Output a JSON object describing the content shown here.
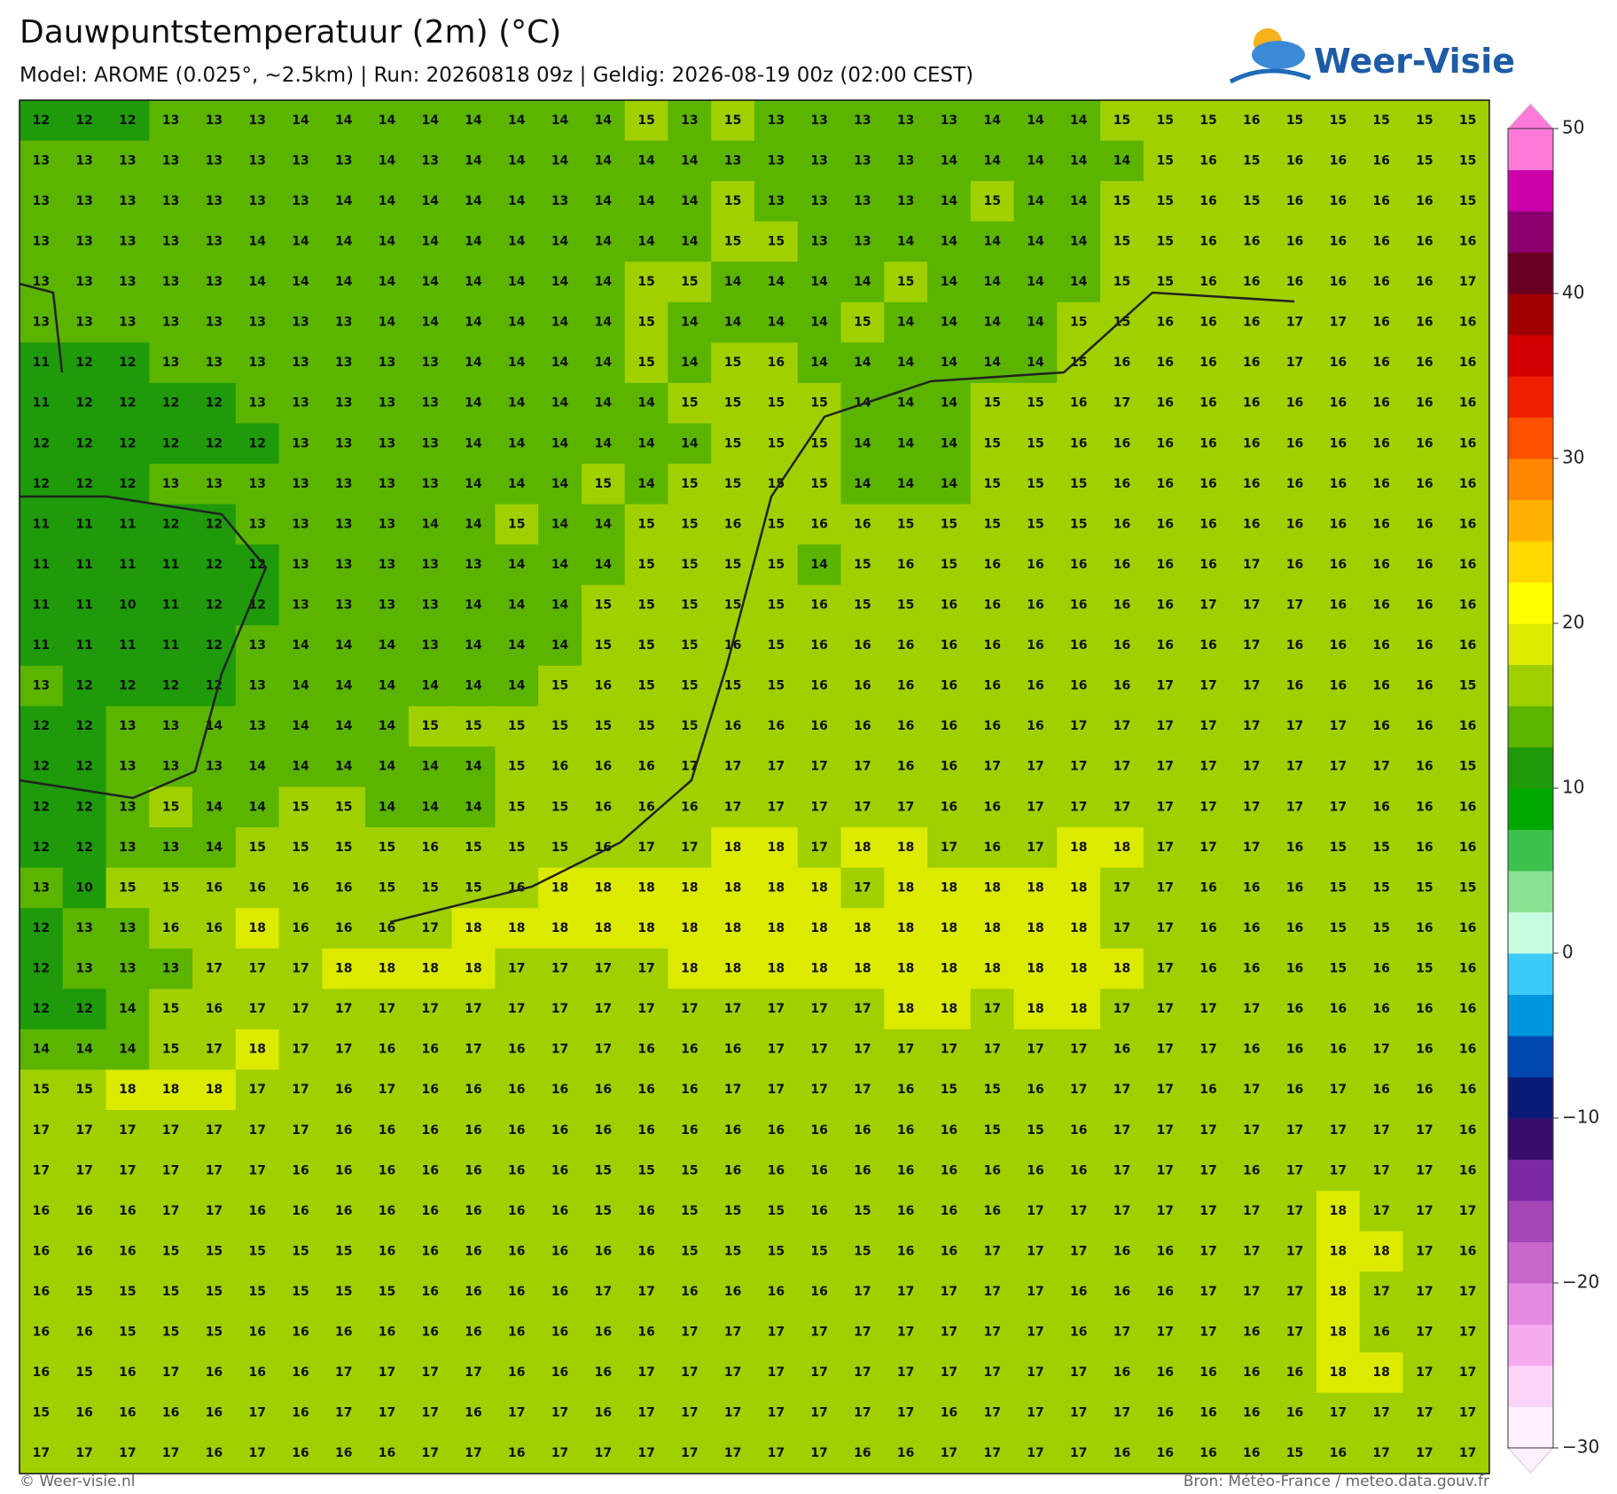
{
  "header": {
    "title": "Dauwpuntstemperatuur (2m) (°C)",
    "subtitle": "Model: AROME (0.025°, ~2.5km)  |  Run: 20260818 09z  |  Geldig: 2026-08-19 00z (02:00 CEST)",
    "logo": "Weer-Visie"
  },
  "footer": {
    "left": "© Weer-visie.nl",
    "right": "Bron: Météo-France / meteo.data.gouv.fr"
  },
  "colorbar": {
    "range": [
      -30,
      50
    ],
    "ticks": [
      {
        "value": -30,
        "label": "−30"
      },
      {
        "value": -20,
        "label": "−20"
      },
      {
        "value": -10,
        "label": "−10"
      },
      0,
      10,
      20,
      30,
      40,
      50
    ],
    "colors": [
      "#fef0fe",
      "#fcd4f8",
      "#f4aaee",
      "#e48ae2",
      "#c866cc",
      "#a446b8",
      "#7a28a4",
      "#3a0c6c",
      "#0a1a78",
      "#0048b0",
      "#0096de",
      "#3ccaf8",
      "#c8fce0",
      "#88e294",
      "#3cc24c",
      "#00a800",
      "#1e9a0a",
      "#5ab400",
      "#a0d000",
      "#dcea00",
      "#ffff00",
      "#ffd800",
      "#ffb000",
      "#ff8400",
      "#ff5000",
      "#f01e00",
      "#d20000",
      "#a00000",
      "#6a0022",
      "#8c006e",
      "#cc00a8",
      "#ff7ad8"
    ]
  },
  "grid": {
    "rows": [
      [
        12,
        12,
        12,
        13,
        13,
        13,
        14,
        14,
        14,
        14,
        14,
        14,
        14,
        14,
        15,
        13,
        15,
        13,
        13,
        13,
        13,
        13,
        14,
        14,
        14,
        15,
        15,
        15,
        16,
        15,
        15,
        15,
        15,
        15
      ],
      [
        13,
        13,
        13,
        13,
        13,
        13,
        13,
        13,
        14,
        13,
        14,
        14,
        14,
        14,
        14,
        14,
        13,
        13,
        13,
        13,
        13,
        14,
        14,
        14,
        14,
        14,
        15,
        16,
        15,
        16,
        16,
        16,
        15,
        15
      ],
      [
        13,
        13,
        13,
        13,
        13,
        13,
        13,
        14,
        14,
        14,
        14,
        14,
        13,
        14,
        14,
        14,
        15,
        13,
        13,
        13,
        13,
        14,
        15,
        14,
        14,
        15,
        15,
        16,
        15,
        16,
        16,
        16,
        16,
        15
      ],
      [
        13,
        13,
        13,
        13,
        13,
        14,
        14,
        14,
        14,
        14,
        14,
        14,
        14,
        14,
        14,
        14,
        15,
        15,
        13,
        13,
        14,
        14,
        14,
        14,
        14,
        15,
        15,
        16,
        16,
        16,
        16,
        16,
        16,
        16
      ],
      [
        13,
        13,
        13,
        13,
        13,
        14,
        14,
        14,
        14,
        14,
        14,
        14,
        14,
        14,
        15,
        15,
        14,
        14,
        14,
        14,
        15,
        14,
        14,
        14,
        14,
        15,
        15,
        16,
        16,
        16,
        16,
        16,
        16,
        17
      ],
      [
        13,
        13,
        13,
        13,
        13,
        13,
        13,
        13,
        14,
        14,
        14,
        14,
        14,
        14,
        15,
        14,
        14,
        14,
        14,
        15,
        14,
        14,
        14,
        14,
        15,
        15,
        16,
        16,
        16,
        17,
        17,
        16,
        16,
        16
      ],
      [
        11,
        12,
        12,
        13,
        13,
        13,
        13,
        13,
        13,
        13,
        14,
        14,
        14,
        14,
        15,
        14,
        15,
        16,
        14,
        14,
        14,
        14,
        14,
        14,
        15,
        16,
        16,
        16,
        16,
        17,
        16,
        16,
        16,
        16
      ],
      [
        11,
        12,
        12,
        12,
        12,
        13,
        13,
        13,
        13,
        13,
        14,
        14,
        14,
        14,
        14,
        15,
        15,
        15,
        15,
        14,
        14,
        14,
        15,
        15,
        16,
        17,
        16,
        16,
        16,
        16,
        16,
        16,
        16,
        16
      ],
      [
        12,
        12,
        12,
        12,
        12,
        12,
        13,
        13,
        13,
        13,
        14,
        14,
        14,
        14,
        14,
        14,
        15,
        15,
        15,
        14,
        14,
        14,
        15,
        15,
        16,
        16,
        16,
        16,
        16,
        16,
        16,
        16,
        16,
        16
      ],
      [
        12,
        12,
        12,
        13,
        13,
        13,
        13,
        13,
        13,
        13,
        14,
        14,
        14,
        15,
        14,
        15,
        15,
        15,
        15,
        14,
        14,
        14,
        15,
        15,
        15,
        16,
        16,
        16,
        16,
        16,
        16,
        16,
        16,
        16
      ],
      [
        11,
        11,
        11,
        12,
        12,
        13,
        13,
        13,
        13,
        14,
        14,
        15,
        14,
        14,
        15,
        15,
        16,
        15,
        16,
        16,
        15,
        15,
        15,
        15,
        15,
        16,
        16,
        16,
        16,
        16,
        16,
        16,
        16,
        16
      ],
      [
        11,
        11,
        11,
        11,
        12,
        12,
        13,
        13,
        13,
        13,
        13,
        14,
        14,
        14,
        15,
        15,
        15,
        15,
        14,
        15,
        16,
        15,
        16,
        16,
        16,
        16,
        16,
        16,
        17,
        16,
        16,
        16,
        16,
        16
      ],
      [
        11,
        11,
        10,
        11,
        12,
        12,
        13,
        13,
        13,
        13,
        14,
        14,
        14,
        15,
        15,
        15,
        15,
        15,
        16,
        15,
        15,
        16,
        16,
        16,
        16,
        16,
        16,
        17,
        17,
        17,
        16,
        16,
        16,
        16
      ],
      [
        11,
        11,
        11,
        11,
        12,
        13,
        14,
        14,
        14,
        13,
        14,
        14,
        14,
        15,
        15,
        15,
        16,
        15,
        16,
        16,
        16,
        16,
        16,
        16,
        16,
        16,
        16,
        16,
        17,
        16,
        16,
        16,
        16,
        16
      ],
      [
        13,
        12,
        12,
        12,
        12,
        13,
        14,
        14,
        14,
        14,
        14,
        14,
        15,
        16,
        15,
        15,
        15,
        15,
        16,
        16,
        16,
        16,
        16,
        16,
        16,
        16,
        17,
        17,
        17,
        16,
        16,
        16,
        16,
        15
      ],
      [
        12,
        12,
        13,
        13,
        14,
        13,
        14,
        14,
        14,
        15,
        15,
        15,
        15,
        15,
        15,
        15,
        16,
        16,
        16,
        16,
        16,
        16,
        16,
        16,
        17,
        17,
        17,
        17,
        17,
        17,
        17,
        16,
        16,
        16
      ],
      [
        12,
        12,
        13,
        13,
        13,
        14,
        14,
        14,
        14,
        14,
        14,
        15,
        16,
        16,
        16,
        17,
        17,
        17,
        17,
        17,
        16,
        16,
        17,
        17,
        17,
        17,
        17,
        17,
        17,
        17,
        17,
        17,
        16,
        15
      ],
      [
        12,
        12,
        13,
        15,
        14,
        14,
        15,
        15,
        14,
        14,
        14,
        15,
        15,
        16,
        16,
        16,
        17,
        17,
        17,
        17,
        17,
        16,
        16,
        17,
        17,
        17,
        17,
        17,
        17,
        17,
        17,
        16,
        16,
        16
      ],
      [
        12,
        12,
        13,
        13,
        14,
        15,
        15,
        15,
        15,
        16,
        15,
        15,
        15,
        16,
        17,
        17,
        18,
        18,
        17,
        18,
        18,
        17,
        16,
        17,
        18,
        18,
        17,
        17,
        17,
        16,
        15,
        15,
        16,
        16
      ],
      [
        13,
        10,
        15,
        15,
        16,
        16,
        16,
        16,
        15,
        15,
        15,
        16,
        18,
        18,
        18,
        18,
        18,
        18,
        18,
        17,
        18,
        18,
        18,
        18,
        18,
        17,
        17,
        16,
        16,
        16,
        15,
        15,
        15,
        15
      ],
      [
        12,
        13,
        13,
        16,
        16,
        18,
        16,
        16,
        16,
        17,
        18,
        18,
        18,
        18,
        18,
        18,
        18,
        18,
        18,
        18,
        18,
        18,
        18,
        18,
        18,
        17,
        17,
        16,
        16,
        16,
        15,
        15,
        16,
        16
      ],
      [
        12,
        13,
        13,
        13,
        17,
        17,
        17,
        18,
        18,
        18,
        18,
        17,
        17,
        17,
        17,
        18,
        18,
        18,
        18,
        18,
        18,
        18,
        18,
        18,
        18,
        18,
        17,
        16,
        16,
        16,
        15,
        16,
        15,
        16
      ],
      [
        12,
        12,
        14,
        15,
        16,
        17,
        17,
        17,
        17,
        17,
        17,
        17,
        17,
        17,
        17,
        17,
        17,
        17,
        17,
        17,
        18,
        18,
        17,
        18,
        18,
        17,
        17,
        17,
        17,
        16,
        16,
        16,
        16,
        16
      ],
      [
        14,
        14,
        14,
        15,
        17,
        18,
        17,
        17,
        16,
        16,
        17,
        16,
        17,
        17,
        16,
        16,
        16,
        17,
        17,
        17,
        17,
        17,
        17,
        17,
        17,
        16,
        17,
        17,
        16,
        16,
        16,
        17,
        16,
        16
      ],
      [
        15,
        15,
        18,
        18,
        18,
        17,
        17,
        16,
        17,
        16,
        16,
        16,
        16,
        16,
        16,
        16,
        17,
        17,
        17,
        17,
        16,
        15,
        15,
        16,
        17,
        17,
        17,
        16,
        17,
        16,
        17,
        16,
        16,
        16
      ],
      [
        17,
        17,
        17,
        17,
        17,
        17,
        17,
        16,
        16,
        16,
        16,
        16,
        16,
        16,
        16,
        16,
        16,
        16,
        16,
        16,
        16,
        16,
        15,
        15,
        16,
        17,
        17,
        17,
        17,
        17,
        17,
        17,
        17,
        16
      ],
      [
        17,
        17,
        17,
        17,
        17,
        17,
        16,
        16,
        16,
        16,
        16,
        16,
        16,
        15,
        15,
        15,
        16,
        16,
        16,
        16,
        16,
        16,
        16,
        16,
        16,
        17,
        17,
        17,
        16,
        17,
        17,
        17,
        17,
        16
      ],
      [
        16,
        16,
        16,
        17,
        17,
        16,
        16,
        16,
        16,
        16,
        16,
        16,
        16,
        15,
        16,
        15,
        15,
        15,
        16,
        15,
        16,
        16,
        16,
        17,
        17,
        17,
        17,
        17,
        17,
        17,
        18,
        17,
        17,
        17
      ],
      [
        16,
        16,
        16,
        15,
        15,
        15,
        15,
        15,
        16,
        16,
        16,
        16,
        16,
        16,
        16,
        15,
        15,
        15,
        15,
        15,
        16,
        16,
        17,
        17,
        17,
        16,
        16,
        17,
        17,
        17,
        18,
        18,
        17,
        16
      ],
      [
        16,
        15,
        15,
        15,
        15,
        15,
        15,
        15,
        15,
        16,
        16,
        16,
        16,
        17,
        17,
        16,
        16,
        16,
        16,
        17,
        17,
        17,
        17,
        17,
        16,
        16,
        16,
        17,
        17,
        17,
        18,
        17,
        17,
        17
      ],
      [
        16,
        16,
        15,
        15,
        15,
        16,
        16,
        16,
        16,
        16,
        16,
        16,
        16,
        16,
        16,
        17,
        17,
        17,
        17,
        17,
        17,
        17,
        17,
        17,
        16,
        17,
        17,
        17,
        16,
        17,
        18,
        16,
        17,
        17
      ],
      [
        16,
        15,
        16,
        17,
        16,
        16,
        16,
        17,
        17,
        17,
        17,
        16,
        16,
        16,
        17,
        17,
        17,
        17,
        17,
        17,
        17,
        17,
        17,
        17,
        17,
        16,
        16,
        16,
        16,
        16,
        18,
        18,
        17,
        17
      ],
      [
        15,
        16,
        16,
        16,
        16,
        17,
        16,
        17,
        17,
        17,
        16,
        17,
        17,
        16,
        17,
        17,
        17,
        17,
        17,
        17,
        17,
        16,
        17,
        17,
        17,
        17,
        16,
        16,
        16,
        16,
        17,
        17,
        17,
        17
      ],
      [
        17,
        17,
        17,
        17,
        16,
        17,
        16,
        16,
        16,
        17,
        17,
        16,
        17,
        17,
        17,
        17,
        17,
        17,
        17,
        16,
        16,
        17,
        17,
        17,
        17,
        16,
        16,
        16,
        16,
        15,
        16,
        17,
        17,
        17
      ]
    ]
  }
}
